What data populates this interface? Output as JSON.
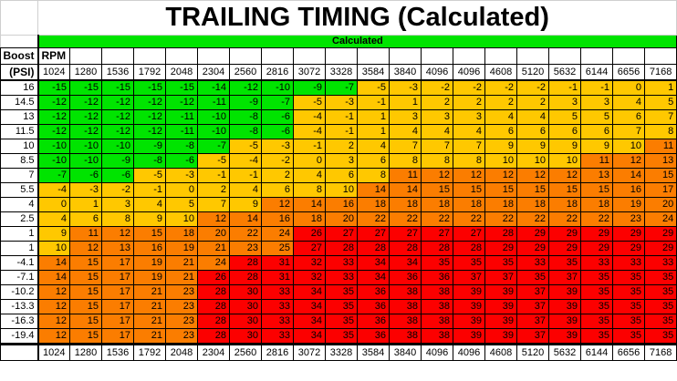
{
  "title": "TRAILING TIMING (Calculated)",
  "band_label": "Calculated",
  "boost_label": "Boost",
  "psi_label": "(PSI)",
  "rpm_label": "RPM",
  "colors": {
    "band_green": "#00e400",
    "grid_line": "#000000",
    "title_grid_line": "#cfcfcf",
    "background": "#ffffff",
    "text": "#000000"
  },
  "chart_data": {
    "type": "heatmap",
    "title": "TRAILING TIMING (Calculated)",
    "band_label": "Calculated",
    "xlabel": "RPM",
    "ylabel": "Boost (PSI)",
    "legend_position": "none",
    "grid": true,
    "x": [
      "1024",
      "1280",
      "1536",
      "1792",
      "2048",
      "2304",
      "2560",
      "2816",
      "3072",
      "3328",
      "3584",
      "3840",
      "4096",
      "4096",
      "4608",
      "5120",
      "5632",
      "6144",
      "6656",
      "7168"
    ],
    "y": [
      "16",
      "14.5",
      "13",
      "11.5",
      "10",
      "8.5",
      "7",
      "5.5",
      "4",
      "2.5",
      "1",
      "1",
      "-4.1",
      "-7.1",
      "-10.2",
      "-13.3",
      "-16.3",
      "-19.4"
    ],
    "values": [
      [
        -15,
        -15,
        -15,
        -15,
        -15,
        -14,
        -12,
        -10,
        -9,
        -7,
        -5,
        -3,
        -2,
        -2,
        -2,
        -2,
        -1,
        -1,
        0,
        1
      ],
      [
        -12,
        -12,
        -12,
        -12,
        -12,
        -11,
        -9,
        -7,
        -5,
        -3,
        -1,
        1,
        2,
        2,
        2,
        2,
        3,
        3,
        4,
        5
      ],
      [
        -12,
        -12,
        -12,
        -12,
        -11,
        -10,
        -8,
        -6,
        -4,
        -1,
        1,
        3,
        3,
        3,
        4,
        4,
        5,
        5,
        6,
        7
      ],
      [
        -12,
        -12,
        -12,
        -12,
        -11,
        -10,
        -8,
        -6,
        -4,
        -1,
        1,
        4,
        4,
        4,
        6,
        6,
        6,
        6,
        7,
        8
      ],
      [
        -10,
        -10,
        -10,
        -9,
        -8,
        -7,
        -5,
        -3,
        -1,
        2,
        4,
        7,
        7,
        7,
        9,
        9,
        9,
        9,
        10,
        11
      ],
      [
        -10,
        -10,
        -9,
        -8,
        -6,
        -5,
        -4,
        -2,
        0,
        3,
        6,
        8,
        8,
        8,
        10,
        10,
        10,
        11,
        12,
        13
      ],
      [
        -7,
        -6,
        -6,
        -5,
        -3,
        -1,
        -1,
        2,
        4,
        6,
        8,
        11,
        12,
        12,
        12,
        12,
        12,
        13,
        14,
        15
      ],
      [
        -4,
        -3,
        -2,
        -1,
        0,
        2,
        4,
        6,
        8,
        10,
        14,
        14,
        15,
        15,
        15,
        15,
        15,
        15,
        16,
        17
      ],
      [
        0,
        1,
        3,
        4,
        5,
        7,
        9,
        12,
        14,
        16,
        18,
        18,
        18,
        18,
        18,
        18,
        18,
        18,
        19,
        20
      ],
      [
        4,
        6,
        8,
        9,
        10,
        12,
        14,
        16,
        18,
        20,
        22,
        22,
        22,
        22,
        22,
        22,
        22,
        22,
        23,
        24
      ],
      [
        9,
        11,
        12,
        15,
        18,
        20,
        22,
        24,
        26,
        27,
        27,
        27,
        27,
        27,
        28,
        29,
        29,
        29,
        29,
        29
      ],
      [
        10,
        12,
        13,
        16,
        19,
        21,
        23,
        25,
        27,
        28,
        28,
        28,
        28,
        28,
        29,
        29,
        29,
        29,
        29,
        29
      ],
      [
        14,
        15,
        17,
        19,
        21,
        24,
        28,
        31,
        32,
        33,
        34,
        34,
        35,
        35,
        35,
        33,
        35,
        33,
        33,
        33
      ],
      [
        14,
        15,
        17,
        19,
        21,
        26,
        28,
        31,
        32,
        33,
        34,
        36,
        36,
        37,
        37,
        35,
        37,
        35,
        35,
        35
      ],
      [
        12,
        15,
        17,
        21,
        23,
        28,
        30,
        33,
        34,
        35,
        36,
        38,
        38,
        39,
        39,
        37,
        39,
        35,
        35,
        35
      ],
      [
        12,
        15,
        17,
        21,
        23,
        28,
        30,
        33,
        34,
        35,
        36,
        38,
        38,
        39,
        39,
        37,
        39,
        35,
        35,
        35
      ],
      [
        12,
        15,
        17,
        21,
        23,
        28,
        30,
        33,
        34,
        35,
        36,
        38,
        38,
        39,
        39,
        37,
        39,
        35,
        35,
        35
      ],
      [
        12,
        15,
        17,
        21,
        23,
        28,
        30,
        33,
        34,
        35,
        36,
        38,
        38,
        39,
        39,
        37,
        39,
        35,
        35,
        35
      ]
    ],
    "zones": [
      "ggggggggggyyyyyyyyyy",
      "ggggggggyyyyyyyyyyyy",
      "ggggggggyyyyyyyyyyyy",
      "ggggggggyyyyyyyyyyyy",
      "ggggggyyyyyyyyyyyyyo",
      "gggggyyyyyyyyyyyyooo",
      "gggyyyyyyyyooooooooo",
      "yyyyyyyyyyoooooooooo",
      "yyyyyyyooooooooooooo",
      "yyyyyooooooooooooooo",
      "yooooooorrrrrrrrrrrr",
      "yooooooorrrrrrrrrrrr",
      "oooooorrrrrrrrrrrrrr",
      "ooooorrrrrrrrrrrrrrr",
      "ooooorrrrrrrrrrrrrrr",
      "ooooorrrrrrrrrrrrrrr",
      "ooooorrrrrrrrrrrrrrr",
      "ooooorrrrrrrrrrrrrrr"
    ],
    "legend_colors": {
      "g": "#00e400",
      "y": "#ffc800",
      "o": "#fb7d00",
      "r": "#fc0000"
    }
  }
}
